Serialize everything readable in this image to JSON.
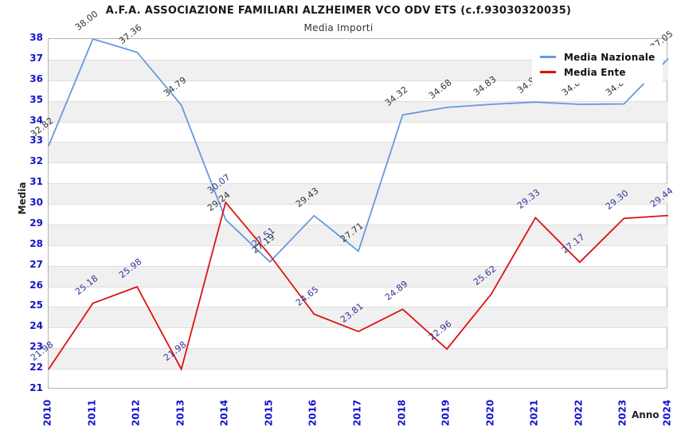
{
  "header": {
    "title": "A.F.A. ASSOCIAZIONE FAMILIARI ALZHEIMER VCO ODV ETS (c.f.93030320035)",
    "subtitle": "Media Importi"
  },
  "colors": {
    "tick_label": "#1414cc",
    "band_gray": "#f0f0f0",
    "axis_border": "#b4b4b4",
    "nazionale_line": "#6699dd",
    "ente_line": "#dd1111",
    "nazionale_value_label": "#333333",
    "ente_value_label": "#333399"
  },
  "chart_data": {
    "type": "line",
    "title": "A.F.A. ASSOCIAZIONE FAMILIARI ALZHEIMER VCO ODV ETS (c.f.93030320035)",
    "subtitle": "Media Importi",
    "xlabel": "Anno",
    "ylabel": "Media",
    "ylim": [
      21,
      38
    ],
    "ytick_step": 1,
    "grid": "horizontal-alternating-bands",
    "legend_position": "top-right",
    "categories": [
      "2010",
      "2011",
      "2012",
      "2013",
      "2014",
      "2015",
      "2016",
      "2017",
      "2018",
      "2019",
      "2020",
      "2021",
      "2022",
      "2023",
      "2024"
    ],
    "series": [
      {
        "name": "Media Nazionale",
        "color": "#6699dd",
        "label_color": "#333333",
        "values": [
          32.82,
          38.0,
          37.36,
          34.79,
          29.24,
          27.19,
          29.43,
          27.71,
          34.32,
          34.68,
          34.83,
          34.94,
          34.83,
          34.85,
          37.05
        ]
      },
      {
        "name": "Media Ente",
        "color": "#dd1111",
        "label_color": "#333399",
        "values": [
          21.98,
          25.18,
          25.98,
          21.98,
          30.07,
          27.51,
          24.65,
          23.81,
          24.89,
          22.96,
          25.62,
          29.33,
          27.17,
          29.3,
          29.44
        ]
      }
    ]
  }
}
